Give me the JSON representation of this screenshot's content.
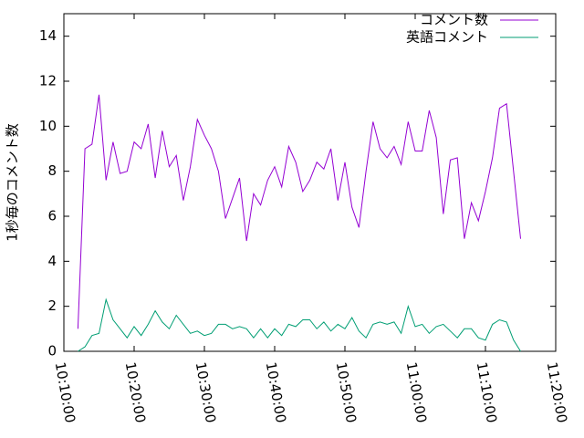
{
  "chart_data": {
    "type": "line",
    "ylabel": "1秒毎のコメント数",
    "legend": "top-right",
    "grid": false,
    "x": [
      "10:12:00",
      "10:13:00",
      "10:14:00",
      "10:15:00",
      "10:16:00",
      "10:17:00",
      "10:18:00",
      "10:19:00",
      "10:20:00",
      "10:21:00",
      "10:22:00",
      "10:23:00",
      "10:24:00",
      "10:25:00",
      "10:26:00",
      "10:27:00",
      "10:28:00",
      "10:29:00",
      "10:30:00",
      "10:31:00",
      "10:32:00",
      "10:33:00",
      "10:34:00",
      "10:35:00",
      "10:36:00",
      "10:37:00",
      "10:38:00",
      "10:39:00",
      "10:40:00",
      "10:41:00",
      "10:42:00",
      "10:43:00",
      "10:44:00",
      "10:45:00",
      "10:46:00",
      "10:47:00",
      "10:48:00",
      "10:49:00",
      "10:50:00",
      "10:51:00",
      "10:52:00",
      "10:53:00",
      "10:54:00",
      "10:55:00",
      "10:56:00",
      "10:57:00",
      "10:58:00",
      "10:59:00",
      "11:00:00",
      "11:01:00",
      "11:02:00",
      "11:03:00",
      "11:04:00",
      "11:05:00",
      "11:06:00",
      "11:07:00",
      "11:08:00",
      "11:09:00",
      "11:10:00",
      "11:11:00",
      "11:12:00",
      "11:13:00",
      "11:14:00",
      "11:15:00"
    ],
    "series": [
      {
        "name": "コメント数",
        "color": "#9400d3",
        "values": [
          1.0,
          9.0,
          9.2,
          11.4,
          7.6,
          9.3,
          7.9,
          8.0,
          9.3,
          9.0,
          10.1,
          7.7,
          9.8,
          8.2,
          8.7,
          6.7,
          8.2,
          10.3,
          9.6,
          9.0,
          8.0,
          5.9,
          6.8,
          7.7,
          4.9,
          7.0,
          6.5,
          7.6,
          8.2,
          7.3,
          9.1,
          8.4,
          7.1,
          7.6,
          8.4,
          8.1,
          9.0,
          6.7,
          8.4,
          6.4,
          5.5,
          8.0,
          10.2,
          9.0,
          8.6,
          9.1,
          8.3,
          10.2,
          8.9,
          8.9,
          10.7,
          9.5,
          6.1,
          8.5,
          8.6,
          5.0,
          6.6,
          5.8,
          7.1,
          8.6,
          10.8,
          11.0,
          8.0,
          5.0
        ]
      },
      {
        "name": "英語コメント",
        "color": "#009e73",
        "values": [
          0.0,
          0.2,
          0.7,
          0.8,
          2.3,
          1.4,
          1.0,
          0.6,
          1.1,
          0.7,
          1.2,
          1.8,
          1.3,
          1.0,
          1.6,
          1.2,
          0.8,
          0.9,
          0.7,
          0.8,
          1.2,
          1.2,
          1.0,
          1.1,
          1.0,
          0.6,
          1.0,
          0.6,
          1.0,
          0.7,
          1.2,
          1.1,
          1.4,
          1.4,
          1.0,
          1.3,
          0.9,
          1.2,
          1.0,
          1.5,
          0.9,
          0.6,
          1.2,
          1.3,
          1.2,
          1.3,
          0.8,
          2.0,
          1.1,
          1.2,
          0.8,
          1.1,
          1.2,
          0.9,
          0.6,
          1.0,
          1.0,
          0.6,
          0.5,
          1.2,
          1.4,
          1.3,
          0.5,
          0.0
        ]
      }
    ],
    "xlim": [
      "10:10:00",
      "11:20:00"
    ],
    "xticks": [
      "10:10:00",
      "10:20:00",
      "10:30:00",
      "10:40:00",
      "10:50:00",
      "11:00:00",
      "11:10:00",
      "11:20:00"
    ],
    "ylim": [
      0,
      15
    ],
    "yticks": [
      0,
      2,
      4,
      6,
      8,
      10,
      12,
      14
    ]
  }
}
